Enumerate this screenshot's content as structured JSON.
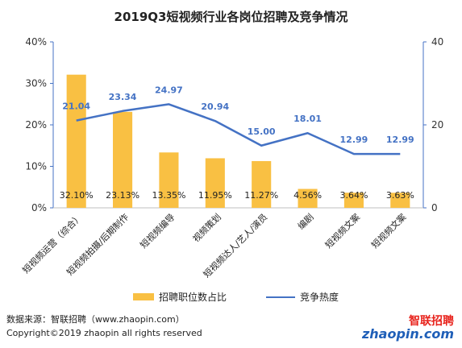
{
  "title": "2019Q3短视频行业各岗位招聘及竞争情况",
  "colors": {
    "bar": "#F9C043",
    "line": "#4472C4",
    "axis": "#4472C4"
  },
  "chart_data": {
    "type": "bar",
    "categories": [
      "短视频运营（综合）",
      "短视频拍摄/后期制作",
      "短视频编导",
      "视频策划",
      "短视频达人/艺人/演员",
      "编剧",
      "短视频文案",
      "短视频文案"
    ],
    "series": [
      {
        "name": "招聘职位数占比",
        "type": "bar",
        "axis": "left",
        "values": [
          32.1,
          23.13,
          13.35,
          11.95,
          11.27,
          4.56,
          3.64,
          3.63
        ],
        "labels": [
          "32.10%",
          "23.13%",
          "13.35%",
          "11.95%",
          "11.27%",
          "4.56%",
          "3.64%",
          "3.63%"
        ]
      },
      {
        "name": "竞争热度",
        "type": "line",
        "axis": "right",
        "values": [
          21.04,
          23.34,
          24.97,
          20.94,
          15.0,
          18.01,
          12.99,
          12.99
        ],
        "labels": [
          "21.04",
          "23.34",
          "24.97",
          "20.94",
          "15.00",
          "18.01",
          "12.99",
          "12.99"
        ]
      }
    ],
    "y_left": {
      "ylim": [
        0,
        40
      ],
      "ticks": [
        0,
        10,
        20,
        30,
        40
      ],
      "tick_labels": [
        "0%",
        "10%",
        "20%",
        "30%",
        "40%"
      ]
    },
    "y_right": {
      "ylim": [
        0,
        40
      ],
      "ticks": [
        0,
        20,
        40
      ],
      "tick_labels": [
        "0",
        "20",
        "40"
      ]
    },
    "grid": false,
    "legend": "bottom"
  },
  "footer": {
    "source": "数据来源：智联招聘（www.zhaopin.com）",
    "copyright": "Copyright©2019 zhaopin all rights reserved"
  },
  "logo": {
    "cn": "智联招聘",
    "en": "zhaopin.com"
  }
}
